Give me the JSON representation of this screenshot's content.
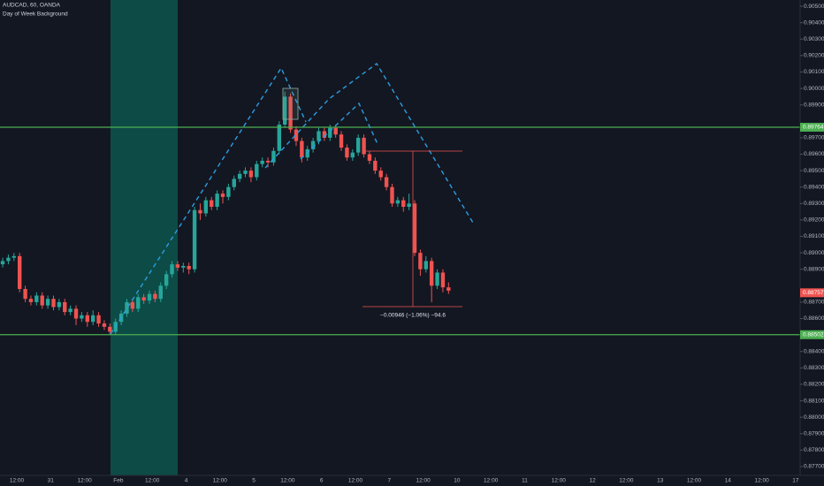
{
  "chart_data": {
    "type": "candlestick",
    "title": "AUDCAD, 60, OANDA",
    "subtitle": "Day of Week Background",
    "up_color": "#26a69a",
    "down_color": "#ef5350",
    "grid": false,
    "ylim": [
      0.87646,
      0.90538
    ],
    "yticks": [
      {
        "value": 0.905,
        "label": "0.90500"
      },
      {
        "value": 0.904,
        "label": "0.90400"
      },
      {
        "value": 0.903,
        "label": "0.90300"
      },
      {
        "value": 0.902,
        "label": "0.90200"
      },
      {
        "value": 0.901,
        "label": "0.90100"
      },
      {
        "value": 0.9,
        "label": "0.90000"
      },
      {
        "value": 0.899,
        "label": "0.89900"
      },
      {
        "value": 0.897,
        "label": "0.89700"
      },
      {
        "value": 0.896,
        "label": "0.89600"
      },
      {
        "value": 0.895,
        "label": "0.89500"
      },
      {
        "value": 0.894,
        "label": "0.89400"
      },
      {
        "value": 0.893,
        "label": "0.89300"
      },
      {
        "value": 0.892,
        "label": "0.89200"
      },
      {
        "value": 0.891,
        "label": "0.89100"
      },
      {
        "value": 0.89,
        "label": "0.89000"
      },
      {
        "value": 0.889,
        "label": "0.88900"
      },
      {
        "value": 0.887,
        "label": "0.88700"
      },
      {
        "value": 0.886,
        "label": "0.88600"
      },
      {
        "value": 0.884,
        "label": "0.88400"
      },
      {
        "value": 0.883,
        "label": "0.88300"
      },
      {
        "value": 0.882,
        "label": "0.88200"
      },
      {
        "value": 0.881,
        "label": "0.88100"
      },
      {
        "value": 0.88,
        "label": "0.88000"
      },
      {
        "value": 0.879,
        "label": "0.87900"
      },
      {
        "value": 0.878,
        "label": "0.87800"
      },
      {
        "value": 0.877,
        "label": "0.87700"
      }
    ],
    "x_labels": [
      "12:00",
      "31",
      "12:00",
      "Feb",
      "12:00",
      "4",
      "12:00",
      "5",
      "12:00",
      "6",
      "12:00",
      "7",
      "12:00",
      "10",
      "12:00",
      "11",
      "12:00",
      "12",
      "12:00",
      "13",
      "12:00",
      "14",
      "12:00",
      "17"
    ],
    "price_lines": [
      {
        "value": 0.89764,
        "color": "#4caf50"
      },
      {
        "value": 0.88502,
        "color": "#4caf50"
      }
    ],
    "last_price": 0.88757,
    "measure_label": "−0.00946 (−1.06%) −94.6",
    "open": [
      0.8893,
      0.8895,
      0.8897,
      0.8898,
      0.8878,
      0.8872,
      0.887,
      0.8874,
      0.8868,
      0.8872,
      0.8867,
      0.887,
      0.8864,
      0.8866,
      0.886,
      0.8862,
      0.8858,
      0.8862,
      0.8857,
      0.8855,
      0.8852,
      0.8858,
      0.8863,
      0.887,
      0.8866,
      0.8873,
      0.8871,
      0.8875,
      0.8872,
      0.888,
      0.8887,
      0.8893,
      0.8891,
      0.8892,
      0.889,
      0.8926,
      0.8924,
      0.8932,
      0.8928,
      0.8936,
      0.8934,
      0.894,
      0.8945,
      0.8948,
      0.895,
      0.8946,
      0.8954,
      0.8956,
      0.8955,
      0.8962,
      0.8978,
      0.8995,
      0.8975,
      0.8968,
      0.8958,
      0.8963,
      0.8968,
      0.8974,
      0.897,
      0.8976,
      0.8972,
      0.8964,
      0.8958,
      0.8961,
      0.897,
      0.896,
      0.8956,
      0.895,
      0.8946,
      0.894,
      0.893,
      0.8932,
      0.8928,
      0.893,
      0.89,
      0.889,
      0.8895,
      0.888,
      0.8888,
      0.8879
    ],
    "high": [
      0.8897,
      0.8899,
      0.89,
      0.89,
      0.888,
      0.8874,
      0.8876,
      0.8876,
      0.8874,
      0.8874,
      0.8872,
      0.8872,
      0.8868,
      0.8868,
      0.8864,
      0.8864,
      0.8865,
      0.8864,
      0.8859,
      0.8857,
      0.886,
      0.8865,
      0.8872,
      0.8872,
      0.8875,
      0.8875,
      0.8877,
      0.8877,
      0.8882,
      0.8889,
      0.8895,
      0.8895,
      0.8894,
      0.8894,
      0.8928,
      0.893,
      0.8934,
      0.8934,
      0.8938,
      0.8938,
      0.8942,
      0.8947,
      0.895,
      0.8952,
      0.8952,
      0.8956,
      0.8958,
      0.8958,
      0.8964,
      0.898,
      0.8998,
      0.8997,
      0.8977,
      0.897,
      0.8965,
      0.897,
      0.8976,
      0.8976,
      0.8978,
      0.8978,
      0.8974,
      0.8966,
      0.8963,
      0.8972,
      0.8972,
      0.8962,
      0.8958,
      0.8952,
      0.8948,
      0.8942,
      0.8934,
      0.8934,
      0.8936,
      0.8932,
      0.8902,
      0.8898,
      0.8897,
      0.889,
      0.889,
      0.8882
    ],
    "low": [
      0.8891,
      0.8893,
      0.8895,
      0.8876,
      0.887,
      0.8868,
      0.8868,
      0.8866,
      0.8866,
      0.8865,
      0.8865,
      0.8862,
      0.8862,
      0.8856,
      0.8858,
      0.8855,
      0.8856,
      0.8855,
      0.8853,
      0.885,
      0.885,
      0.8856,
      0.8861,
      0.8864,
      0.8864,
      0.8869,
      0.8869,
      0.887,
      0.887,
      0.8878,
      0.8885,
      0.8889,
      0.8888,
      0.8887,
      0.8888,
      0.892,
      0.8922,
      0.8926,
      0.8926,
      0.893,
      0.8932,
      0.8938,
      0.8943,
      0.8946,
      0.8943,
      0.8944,
      0.8952,
      0.8952,
      0.8953,
      0.896,
      0.8976,
      0.8973,
      0.8965,
      0.8955,
      0.8956,
      0.8961,
      0.8966,
      0.8968,
      0.8968,
      0.897,
      0.8962,
      0.8956,
      0.8956,
      0.8959,
      0.8958,
      0.8954,
      0.8948,
      0.8944,
      0.8938,
      0.8928,
      0.8928,
      0.8925,
      0.8926,
      0.8898,
      0.8886,
      0.8888,
      0.887,
      0.8878,
      0.8876,
      0.8875
    ],
    "close": [
      0.8895,
      0.8897,
      0.8898,
      0.8878,
      0.8872,
      0.887,
      0.8874,
      0.8868,
      0.8872,
      0.8867,
      0.887,
      0.8864,
      0.8866,
      0.886,
      0.8862,
      0.8858,
      0.8862,
      0.8857,
      0.8855,
      0.8852,
      0.8858,
      0.8863,
      0.887,
      0.8866,
      0.8873,
      0.8871,
      0.8875,
      0.8872,
      0.888,
      0.8887,
      0.8893,
      0.8891,
      0.8892,
      0.889,
      0.8926,
      0.8924,
      0.8932,
      0.8928,
      0.8936,
      0.8934,
      0.894,
      0.8945,
      0.8948,
      0.895,
      0.8946,
      0.8954,
      0.8956,
      0.8955,
      0.8962,
      0.8978,
      0.8995,
      0.8975,
      0.8968,
      0.8958,
      0.8963,
      0.8968,
      0.8974,
      0.897,
      0.8976,
      0.8972,
      0.8964,
      0.8958,
      0.8961,
      0.897,
      0.896,
      0.8956,
      0.895,
      0.8946,
      0.894,
      0.893,
      0.8932,
      0.8928,
      0.893,
      0.89,
      0.889,
      0.8895,
      0.888,
      0.8888,
      0.8879,
      0.8877
    ]
  }
}
